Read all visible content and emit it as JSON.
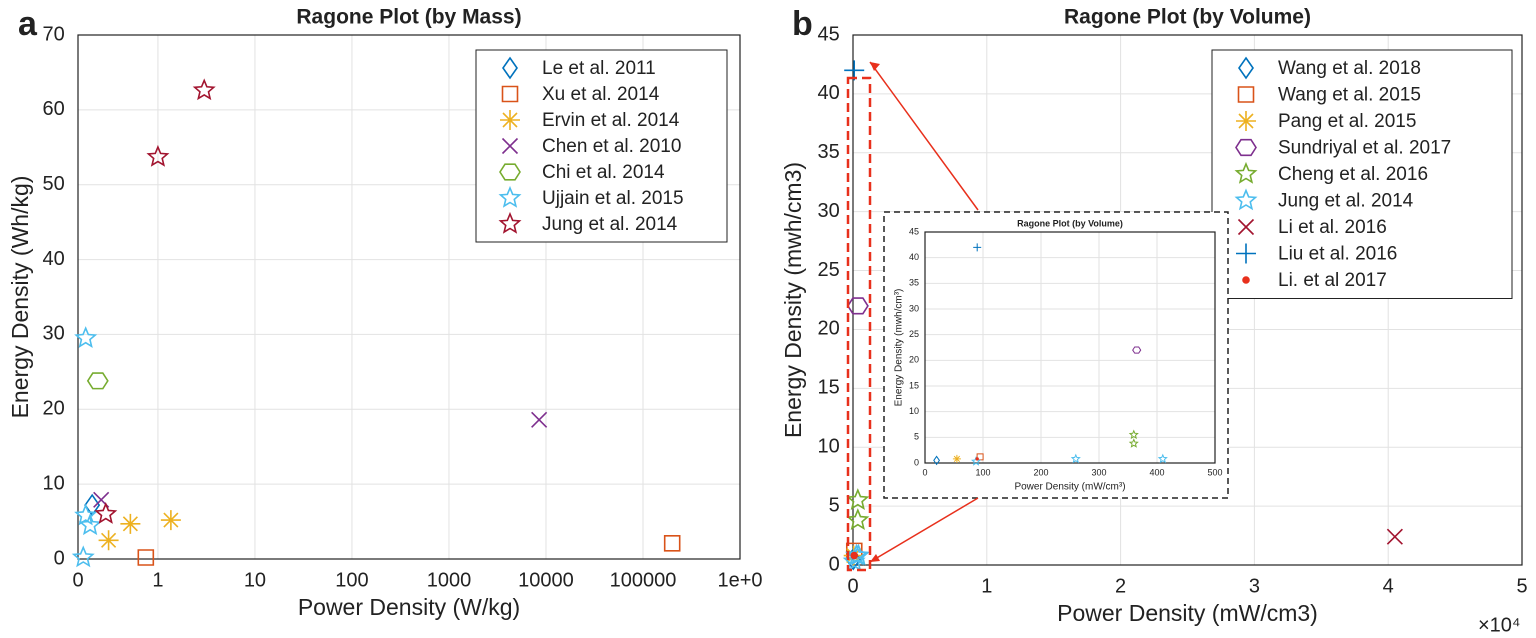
{
  "chart_data": [
    {
      "type": "scatter",
      "panel": "a",
      "title": "Ragone Plot (by Mass)",
      "x_label": "Power Density (W/kg)",
      "y_label": "Energy Density (Wh/kg)",
      "xscale": "log",
      "xlim": [
        0.15,
        1000000
      ],
      "ylim": [
        0,
        70
      ],
      "grid": true,
      "legend": "upper right",
      "xticks": [
        {
          "value": 0.15,
          "label": "0"
        },
        1,
        10,
        100,
        1000,
        10000,
        100000,
        {
          "value": 1000000,
          "label": "1e+0"
        }
      ],
      "yticks": [
        0,
        10,
        20,
        30,
        40,
        50,
        60,
        70
      ],
      "series": [
        {
          "name": "Le et al. 2011",
          "color": "#0072bd",
          "marker": "diamond",
          "x": [
            0.21
          ],
          "values": [
            7.2
          ]
        },
        {
          "name": "Xu et al. 2014",
          "color": "#d95319",
          "marker": "square",
          "x": [
            0.75,
            200000
          ],
          "values": [
            0.2,
            2.1
          ]
        },
        {
          "name": "Ervin et al. 2014",
          "color": "#edb120",
          "marker": "asterisk",
          "x": [
            0.52,
            0.31,
            1.36
          ],
          "values": [
            4.7,
            2.5,
            5.2
          ]
        },
        {
          "name": "Chen et al. 2010",
          "color": "#7e2f8e",
          "marker": "x",
          "x": [
            0.26,
            8500
          ],
          "values": [
            7.9,
            18.6
          ]
        },
        {
          "name": "Chi et al. 2014",
          "color": "#77ac30",
          "marker": "hexagon",
          "x": [
            0.24
          ],
          "values": [
            23.8
          ]
        },
        {
          "name": "Ujjain et al. 2015",
          "color": "#4dbeee",
          "marker": "star",
          "x": [
            0.18,
            0.18,
            0.2,
            0.17
          ],
          "values": [
            29.5,
            5.8,
            4.5,
            0.2
          ]
        },
        {
          "name": "Jung et al. 2014",
          "color": "#a2142f",
          "marker": "star",
          "x": [
            1.0,
            3.0,
            0.29
          ],
          "values": [
            53.7,
            62.6,
            6.0
          ]
        }
      ]
    },
    {
      "type": "scatter",
      "panel": "b",
      "title": "Ragone Plot (by Volume)",
      "x_label": "Power Density (mW/cm3)",
      "y_label": "Energy Density (mwh/cm3)",
      "x_multiplier": "×10⁴",
      "xlim": [
        0,
        50000
      ],
      "ylim": [
        0,
        45
      ],
      "grid": true,
      "legend": "upper right",
      "xticks": [
        0,
        {
          "value": 10000,
          "label": "1"
        },
        {
          "value": 20000,
          "label": "2"
        },
        {
          "value": 30000,
          "label": "3"
        },
        {
          "value": 40000,
          "label": "4"
        },
        {
          "value": 50000,
          "label": "5"
        }
      ],
      "yticks": [
        0,
        5,
        10,
        15,
        20,
        25,
        30,
        35,
        40,
        45
      ],
      "series": [
        {
          "name": "Wang et al. 2018",
          "color": "#0072bd",
          "marker": "diamond",
          "x": [
            20
          ],
          "values": [
            0.5
          ]
        },
        {
          "name": "Wang et al. 2015",
          "color": "#d95319",
          "marker": "square",
          "x": [
            95
          ],
          "values": [
            1.2
          ]
        },
        {
          "name": "Pang et al. 2015",
          "color": "#edb120",
          "marker": "asterisk",
          "x": [
            55
          ],
          "values": [
            0.8
          ]
        },
        {
          "name": "Sundriyal et al. 2017",
          "color": "#7e2f8e",
          "marker": "hexagon",
          "x": [
            365
          ],
          "values": [
            22
          ]
        },
        {
          "name": "Cheng et al. 2016",
          "color": "#77ac30",
          "marker": "star",
          "x": [
            360,
            360
          ],
          "values": [
            5.5,
            3.8
          ]
        },
        {
          "name": "Jung et al. 2014",
          "color": "#4dbeee",
          "marker": "star",
          "x": [
            88,
            260,
            410
          ],
          "values": [
            0.3,
            0.8,
            0.8
          ]
        },
        {
          "name": "Li et al. 2016",
          "color": "#a2142f",
          "marker": "x",
          "x": [
            40500
          ],
          "values": [
            2.4
          ]
        },
        {
          "name": "Liu et al. 2016",
          "color": "#0072bd",
          "marker": "plus",
          "x": [
            90
          ],
          "values": [
            42
          ]
        },
        {
          "name": "Li. et al 2017",
          "color": "#e8301c",
          "marker": "dot",
          "x": [
            90
          ],
          "values": [
            0.8
          ]
        }
      ]
    },
    {
      "type": "inset",
      "title": "Ragone Plot (by Volume)",
      "x_label": "Power Density (mW/cm³)",
      "y_label": "Energy Density (mwh/cm³)",
      "xlim": [
        0,
        500
      ],
      "ylim": [
        0,
        45
      ],
      "xticks": [
        0,
        100,
        200,
        300,
        400,
        500
      ],
      "yticks": [
        0,
        5,
        10,
        15,
        20,
        25,
        30,
        35,
        40,
        45
      ]
    }
  ]
}
